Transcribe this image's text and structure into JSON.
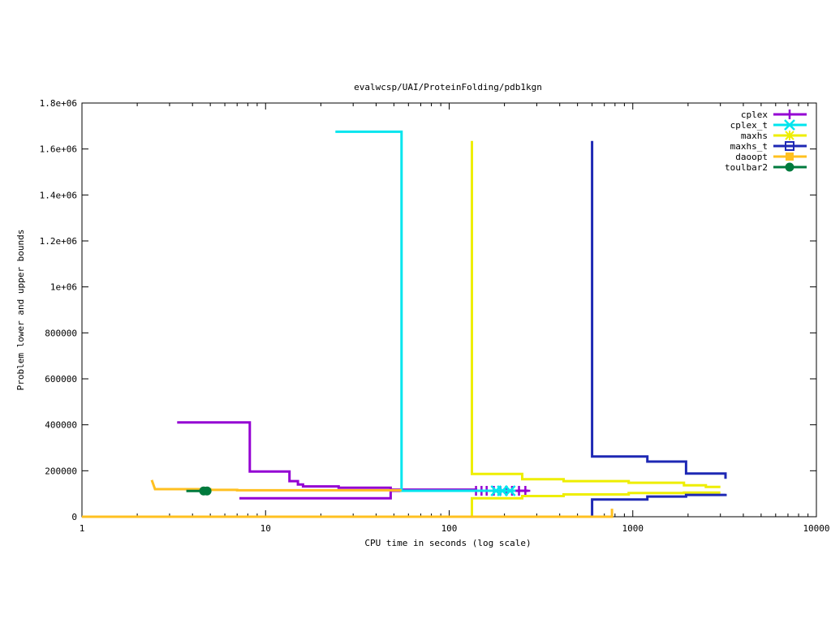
{
  "chart_data": {
    "type": "line",
    "title": "evalwcsp/UAI/ProteinFolding/pdb1kgn",
    "xlabel": "CPU time in seconds (log scale)",
    "ylabel": "Problem lower and upper bounds",
    "xscale": "log",
    "xlim": [
      1,
      10000
    ],
    "ylim": [
      0,
      1800000
    ],
    "grid": false,
    "legend_position": "top-right",
    "x_ticks": [
      {
        "value": 1,
        "label": "1"
      },
      {
        "value": 10,
        "label": "10"
      },
      {
        "value": 100,
        "label": "100"
      },
      {
        "value": 1000,
        "label": "1000"
      },
      {
        "value": 10000,
        "label": "10000"
      }
    ],
    "y_ticks": [
      {
        "value": 0,
        "label": "0"
      },
      {
        "value": 200000,
        "label": "200000"
      },
      {
        "value": 400000,
        "label": "400000"
      },
      {
        "value": 600000,
        "label": "600000"
      },
      {
        "value": 800000,
        "label": "800000"
      },
      {
        "value": 1000000,
        "label": "1e+06"
      },
      {
        "value": 1200000,
        "label": "1.2e+06"
      },
      {
        "value": 1400000,
        "label": "1.4e+06"
      },
      {
        "value": 1600000,
        "label": "1.6e+06"
      },
      {
        "value": 1800000,
        "label": "1.8e+06"
      }
    ],
    "series": [
      {
        "name": "cplex",
        "color": "#9400d3",
        "marker": "plus",
        "lines": [
          [
            [
              3.3,
              410000
            ],
            [
              8.2,
              410000
            ],
            [
              8.2,
              197000
            ],
            [
              13.5,
              197000
            ],
            [
              13.5,
              155000
            ],
            [
              15,
              155000
            ],
            [
              15,
              140000
            ],
            [
              16,
              140000
            ],
            [
              16,
              132000
            ],
            [
              25,
              132000
            ],
            [
              25,
              126000
            ],
            [
              48,
              126000
            ],
            [
              48,
              118000
            ],
            [
              140,
              118000
            ],
            [
              140,
              113000
            ],
            [
              270,
              113000
            ]
          ],
          [
            [
              7.2,
              80000
            ],
            [
              48,
              80000
            ],
            [
              48,
              113000
            ],
            [
              270,
              113000
            ]
          ]
        ],
        "markers": [
          [
            140,
            113000
          ],
          [
            150,
            113000
          ],
          [
            160,
            113000
          ],
          [
            175,
            113000
          ],
          [
            190,
            113000
          ],
          [
            205,
            113000
          ],
          [
            220,
            113000
          ],
          [
            240,
            113000
          ],
          [
            260,
            113000
          ]
        ]
      },
      {
        "name": "cplex_t",
        "color": "#00e5ee",
        "marker": "cross",
        "lines": [
          [
            [
              24,
              1675000
            ],
            [
              55,
              1675000
            ],
            [
              55,
              113000
            ],
            [
              230,
              113000
            ]
          ]
        ],
        "markers": [
          [
            180,
            113000
          ],
          [
            195,
            113000
          ],
          [
            215,
            113000
          ]
        ]
      },
      {
        "name": "maxhs",
        "color": "#eeee00",
        "marker": "star",
        "lines": [
          [
            [
              133,
              1635000
            ],
            [
              133,
              186000
            ],
            [
              250,
              186000
            ],
            [
              250,
              163000
            ],
            [
              420,
              163000
            ],
            [
              420,
              155000
            ],
            [
              950,
              155000
            ],
            [
              950,
              148000
            ],
            [
              1900,
              148000
            ],
            [
              1900,
              137000
            ],
            [
              2500,
              137000
            ],
            [
              2500,
              130000
            ],
            [
              3000,
              130000
            ]
          ],
          [
            [
              133,
              0
            ],
            [
              133,
              80000
            ],
            [
              250,
              80000
            ],
            [
              250,
              90000
            ],
            [
              420,
              90000
            ],
            [
              420,
              97000
            ],
            [
              950,
              97000
            ],
            [
              950,
              103000
            ],
            [
              1900,
              103000
            ],
            [
              1900,
              105000
            ],
            [
              3000,
              105000
            ]
          ]
        ],
        "markers": []
      },
      {
        "name": "maxhs_t",
        "color": "#1e28b4",
        "marker": "square",
        "lines": [
          [
            [
              600,
              1635000
            ],
            [
              600,
              262000
            ],
            [
              1200,
              262000
            ],
            [
              1200,
              240000
            ],
            [
              1950,
              240000
            ],
            [
              1950,
              188000
            ],
            [
              3200,
              188000
            ],
            [
              3200,
              165000
            ]
          ],
          [
            [
              600,
              0
            ],
            [
              600,
              75000
            ],
            [
              1200,
              75000
            ],
            [
              1200,
              88000
            ],
            [
              1950,
              88000
            ],
            [
              1950,
              95000
            ],
            [
              3200,
              95000
            ],
            [
              3200,
              100000
            ]
          ]
        ],
        "markers": []
      },
      {
        "name": "daoopt",
        "color": "#ffc020",
        "marker": "filled-square",
        "lines": [
          [
            [
              2.4,
              160000
            ],
            [
              2.5,
              120000
            ],
            [
              5,
              120000
            ],
            [
              5,
              117000
            ],
            [
              7,
              117000
            ],
            [
              7,
              115000
            ],
            [
              55,
              115000
            ]
          ],
          [
            [
              1,
              0
            ],
            [
              770,
              0
            ],
            [
              770,
              35000
            ]
          ]
        ],
        "markers": []
      },
      {
        "name": "toulbar2",
        "color": "#007a3d",
        "marker": "circle",
        "lines": [
          [
            [
              3.7,
              112000
            ],
            [
              4.9,
              112000
            ]
          ]
        ],
        "markers": [
          [
            4.6,
            112000
          ],
          [
            4.8,
            112000
          ]
        ]
      }
    ]
  }
}
